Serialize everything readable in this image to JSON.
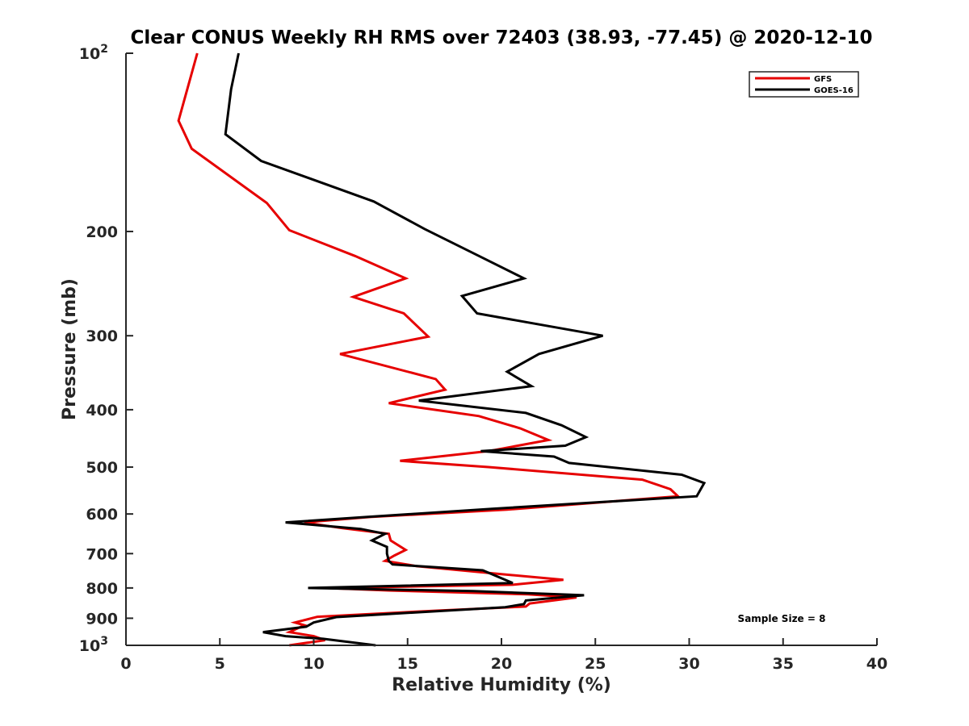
{
  "chart_data": {
    "type": "line",
    "title": "Clear CONUS Weekly RH RMS over 72403 (38.93, -77.45) @ 2020-12-10",
    "xlabel": "Relative Humidity (%)",
    "ylabel": "Pressure (mb)",
    "xlim": [
      0,
      40
    ],
    "ylim": [
      100,
      1000
    ],
    "y_scale": "log",
    "y_reversed": true,
    "grid": false,
    "legend_position": "top-right",
    "annotation": "Sample Size = 8",
    "x_ticks": [
      "0",
      "5",
      "10",
      "15",
      "20",
      "25",
      "30",
      "35",
      "40"
    ],
    "x_tick_values": [
      0,
      5,
      10,
      15,
      20,
      25,
      30,
      35,
      40
    ],
    "y_ticks": [
      {
        "value": 100,
        "base": "10",
        "exp": "2"
      },
      {
        "value": 200,
        "base": "200",
        "exp": ""
      },
      {
        "value": 300,
        "base": "300",
        "exp": ""
      },
      {
        "value": 400,
        "base": "400",
        "exp": ""
      },
      {
        "value": 500,
        "base": "500",
        "exp": ""
      },
      {
        "value": 600,
        "base": "600",
        "exp": ""
      },
      {
        "value": 700,
        "base": "700",
        "exp": ""
      },
      {
        "value": 800,
        "base": "800",
        "exp": ""
      },
      {
        "value": 900,
        "base": "900",
        "exp": ""
      },
      {
        "value": 1000,
        "base": "10",
        "exp": "3"
      }
    ],
    "series": [
      {
        "name": "GFS",
        "color": "#e60000",
        "points": [
          [
            3.8,
            100
          ],
          [
            2.8,
            130
          ],
          [
            3.5,
            145
          ],
          [
            7.5,
            179
          ],
          [
            8.7,
            199
          ],
          [
            12.2,
            220
          ],
          [
            14.9,
            240
          ],
          [
            12.1,
            258
          ],
          [
            14.8,
            275
          ],
          [
            16.1,
            301
          ],
          [
            11.4,
            322
          ],
          [
            16.5,
            355
          ],
          [
            17.0,
            370
          ],
          [
            14.0,
            390
          ],
          [
            18.8,
            410
          ],
          [
            21.0,
            430
          ],
          [
            22.5,
            450
          ],
          [
            19.3,
            470
          ],
          [
            14.6,
            488
          ],
          [
            19.3,
            500
          ],
          [
            27.5,
            525
          ],
          [
            29.0,
            545
          ],
          [
            29.4,
            560
          ],
          [
            20.3,
            590
          ],
          [
            13.0,
            607
          ],
          [
            9.5,
            620
          ],
          [
            11.5,
            634
          ],
          [
            14.0,
            648
          ],
          [
            14.1,
            665
          ],
          [
            14.9,
            690
          ],
          [
            14.3,
            705
          ],
          [
            13.8,
            720
          ],
          [
            15.5,
            735
          ],
          [
            20.0,
            758
          ],
          [
            23.3,
            775
          ],
          [
            20.6,
            790
          ],
          [
            10.6,
            800
          ],
          [
            14.0,
            808
          ],
          [
            21.4,
            820
          ],
          [
            24.0,
            830
          ],
          [
            21.5,
            850
          ],
          [
            21.3,
            860
          ],
          [
            16.8,
            873
          ],
          [
            10.2,
            895
          ],
          [
            9.0,
            915
          ],
          [
            9.5,
            925
          ],
          [
            8.7,
            950
          ],
          [
            10.0,
            965
          ],
          [
            10.6,
            980
          ],
          [
            8.7,
            1000
          ]
        ]
      },
      {
        "name": "GOES-16",
        "color": "#000000",
        "points": [
          [
            6.0,
            100
          ],
          [
            5.6,
            115
          ],
          [
            5.3,
            137
          ],
          [
            7.2,
            152
          ],
          [
            13.2,
            178
          ],
          [
            15.9,
            198
          ],
          [
            18.8,
            220
          ],
          [
            21.2,
            240
          ],
          [
            17.9,
            257
          ],
          [
            18.7,
            275
          ],
          [
            25.4,
            300
          ],
          [
            22.0,
            322
          ],
          [
            20.3,
            345
          ],
          [
            21.6,
            365
          ],
          [
            15.6,
            386
          ],
          [
            21.3,
            405
          ],
          [
            23.2,
            425
          ],
          [
            24.5,
            445
          ],
          [
            23.4,
            460
          ],
          [
            18.9,
            470
          ],
          [
            22.8,
            480
          ],
          [
            23.6,
            492
          ],
          [
            29.6,
            515
          ],
          [
            30.8,
            532
          ],
          [
            30.4,
            560
          ],
          [
            19.5,
            588
          ],
          [
            12.8,
            607
          ],
          [
            8.5,
            620
          ],
          [
            12.5,
            636
          ],
          [
            13.8,
            648
          ],
          [
            13.1,
            665
          ],
          [
            13.9,
            682
          ],
          [
            13.9,
            700
          ],
          [
            14.0,
            720
          ],
          [
            14.2,
            730
          ],
          [
            19.0,
            747
          ],
          [
            20.6,
            785
          ],
          [
            9.7,
            800
          ],
          [
            18.5,
            810
          ],
          [
            24.4,
            823
          ],
          [
            21.3,
            840
          ],
          [
            21.2,
            852
          ],
          [
            20.2,
            862
          ],
          [
            11.2,
            896
          ],
          [
            10.0,
            915
          ],
          [
            9.6,
            930
          ],
          [
            7.3,
            950
          ],
          [
            8.5,
            965
          ],
          [
            10.5,
            975
          ],
          [
            13.3,
            1000
          ]
        ]
      }
    ]
  }
}
